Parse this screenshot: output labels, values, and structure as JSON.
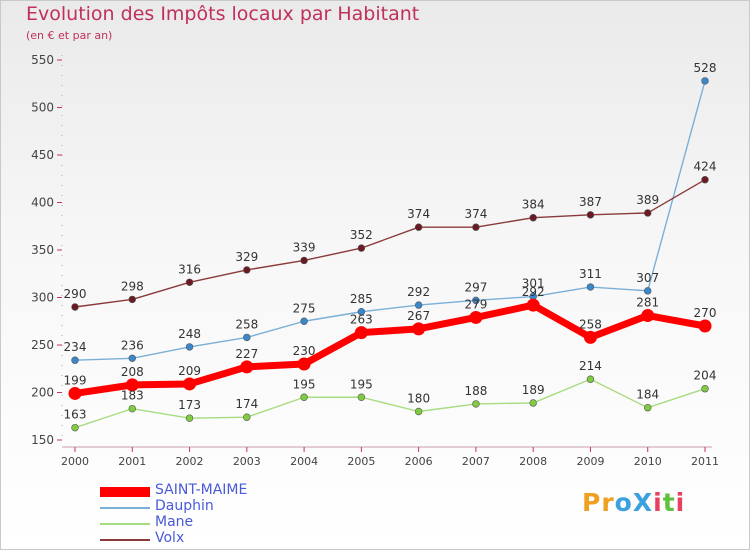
{
  "title": "Evolution des Impôts locaux par Habitant",
  "subtitle": "(en € et par an)",
  "logo": {
    "text": "ProXiti",
    "letter_colors": [
      "#f0a020",
      "#f0a020",
      "#3aa0e0",
      "#3aa0e0",
      "#e84060",
      "#60c040",
      "#e84060"
    ]
  },
  "chart_data": {
    "type": "line",
    "title": "Evolution des Impôts locaux par Habitant",
    "subtitle": "(en € et par an)",
    "xlabel": "",
    "ylabel": "",
    "x": [
      "2000",
      "2001",
      "2002",
      "2003",
      "2004",
      "2005",
      "2006",
      "2007",
      "2008",
      "2009",
      "2010",
      "2011"
    ],
    "ylim": [
      150,
      550
    ],
    "yticks": [
      150,
      200,
      250,
      300,
      350,
      400,
      450,
      500,
      550
    ],
    "grid": false,
    "legend_position": "bottom-left",
    "series": [
      {
        "name": "SAINT-MAIME",
        "color": "#ff0000",
        "marker_color": "#ff0000",
        "emphasis": true,
        "values": [
          199,
          208,
          209,
          227,
          230,
          263,
          267,
          279,
          292,
          258,
          281,
          270
        ]
      },
      {
        "name": "Dauphin",
        "color": "#7ab0d8",
        "marker_color": "#3a88cc",
        "emphasis": false,
        "values": [
          234,
          236,
          248,
          258,
          275,
          285,
          292,
          297,
          301,
          311,
          307,
          528
        ]
      },
      {
        "name": "Mane",
        "color": "#a8dc80",
        "marker_color": "#80cc40",
        "emphasis": false,
        "values": [
          163,
          183,
          173,
          174,
          195,
          195,
          180,
          188,
          189,
          214,
          184,
          204
        ]
      },
      {
        "name": "Volx",
        "color": "#8a3a3a",
        "marker_color": "#6a1a22",
        "emphasis": false,
        "values": [
          290,
          298,
          316,
          329,
          339,
          352,
          374,
          374,
          384,
          387,
          389,
          424
        ]
      }
    ]
  }
}
